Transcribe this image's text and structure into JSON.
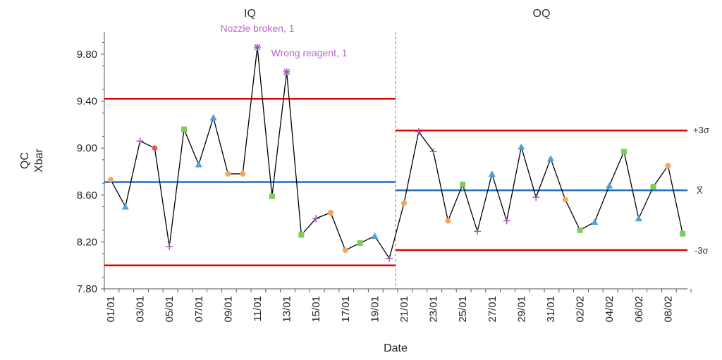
{
  "chart_data": {
    "type": "line",
    "chart_kind": "control chart (X-bar) with phases",
    "ylabel_lines": [
      "QC",
      "Xbar"
    ],
    "xlabel": "Date",
    "ylim": [
      7.8,
      10.0
    ],
    "yticks": [
      "7.80",
      "8.20",
      "8.60",
      "9.00",
      "9.40",
      "9.80"
    ],
    "ytick_values": [
      7.8,
      8.2,
      8.6,
      9.0,
      9.4,
      9.8
    ],
    "grid": false,
    "legend": "none",
    "x_tick_labels": [
      "01/01",
      "03/01",
      "05/01",
      "07/01",
      "09/01",
      "11/01",
      "13/01",
      "15/01",
      "17/01",
      "19/01",
      "21/01",
      "23/01",
      "25/01",
      "27/01",
      "29/01",
      "31/01",
      "02/02",
      "04/02",
      "06/02",
      "08/02"
    ],
    "phases": [
      {
        "name": "IQ",
        "center": 8.71,
        "ucl": 9.42,
        "lcl": 8.0,
        "points": [
          {
            "x": "01/01",
            "y": 8.73,
            "marker": "circle",
            "color": "#f4a460"
          },
          {
            "x": "02/01",
            "y": 8.5,
            "marker": "triangle",
            "color": "#4aa3d8"
          },
          {
            "x": "03/01",
            "y": 9.06,
            "marker": "plus",
            "color": "#9b59b6"
          },
          {
            "x": "04/01",
            "y": 9.0,
            "marker": "circle",
            "color": "#e05a5a"
          },
          {
            "x": "05/01",
            "y": 8.16,
            "marker": "plus",
            "color": "#9b59b6"
          },
          {
            "x": "06/01",
            "y": 9.16,
            "marker": "square",
            "color": "#7ccd5a"
          },
          {
            "x": "07/01",
            "y": 8.86,
            "marker": "triangle",
            "color": "#4aa3d8"
          },
          {
            "x": "08/01",
            "y": 9.26,
            "marker": "triangle",
            "color": "#4aa3d8"
          },
          {
            "x": "09/01",
            "y": 8.78,
            "marker": "circle",
            "color": "#f4a460"
          },
          {
            "x": "10/01",
            "y": 8.78,
            "marker": "circle",
            "color": "#f4a460"
          },
          {
            "x": "11/01",
            "y": 9.86,
            "marker": "star",
            "color": "#9b59b6"
          },
          {
            "x": "12/01",
            "y": 8.59,
            "marker": "square",
            "color": "#7ccd5a"
          },
          {
            "x": "13/01",
            "y": 9.65,
            "marker": "star",
            "color": "#9b59b6"
          },
          {
            "x": "14/01",
            "y": 8.26,
            "marker": "square",
            "color": "#7ccd5a"
          },
          {
            "x": "15/01",
            "y": 8.4,
            "marker": "plus",
            "color": "#9b59b6"
          },
          {
            "x": "16/01",
            "y": 8.45,
            "marker": "circle",
            "color": "#f4a460"
          },
          {
            "x": "17/01",
            "y": 8.13,
            "marker": "circle",
            "color": "#f4a460"
          },
          {
            "x": "18/01",
            "y": 8.19,
            "marker": "square",
            "color": "#7ccd5a"
          },
          {
            "x": "19/01",
            "y": 8.25,
            "marker": "triangle",
            "color": "#4aa3d8"
          },
          {
            "x": "20/01",
            "y": 8.06,
            "marker": "plus",
            "color": "#9b59b6"
          }
        ]
      },
      {
        "name": "OQ",
        "center": 8.64,
        "ucl": 9.15,
        "lcl": 8.13,
        "points": [
          {
            "x": "21/01",
            "y": 8.53,
            "marker": "circle",
            "color": "#f4a460"
          },
          {
            "x": "22/01",
            "y": 9.14,
            "marker": "plus",
            "color": "#9b59b6"
          },
          {
            "x": "23/01",
            "y": 8.97,
            "marker": "plus",
            "color": "#9b59b6"
          },
          {
            "x": "24/01",
            "y": 8.38,
            "marker": "circle",
            "color": "#f4a460"
          },
          {
            "x": "25/01",
            "y": 8.69,
            "marker": "square",
            "color": "#7ccd5a"
          },
          {
            "x": "26/01",
            "y": 8.29,
            "marker": "plus",
            "color": "#9b59b6"
          },
          {
            "x": "27/01",
            "y": 8.78,
            "marker": "triangle",
            "color": "#4aa3d8"
          },
          {
            "x": "28/01",
            "y": 8.38,
            "marker": "plus",
            "color": "#9b59b6"
          },
          {
            "x": "29/01",
            "y": 9.01,
            "marker": "triangle",
            "color": "#4aa3d8"
          },
          {
            "x": "30/01",
            "y": 8.58,
            "marker": "plus",
            "color": "#9b59b6"
          },
          {
            "x": "31/01",
            "y": 8.91,
            "marker": "triangle",
            "color": "#4aa3d8"
          },
          {
            "x": "01/02",
            "y": 8.56,
            "marker": "circle",
            "color": "#f4a460"
          },
          {
            "x": "02/02",
            "y": 8.3,
            "marker": "square",
            "color": "#7ccd5a"
          },
          {
            "x": "03/02",
            "y": 8.37,
            "marker": "triangle",
            "color": "#4aa3d8"
          },
          {
            "x": "04/02",
            "y": 8.68,
            "marker": "triangle",
            "color": "#4aa3d8"
          },
          {
            "x": "05/02",
            "y": 8.97,
            "marker": "square",
            "color": "#7ccd5a"
          },
          {
            "x": "06/02",
            "y": 8.4,
            "marker": "triangle",
            "color": "#4aa3d8"
          },
          {
            "x": "07/02",
            "y": 8.67,
            "marker": "square",
            "color": "#7ccd5a"
          },
          {
            "x": "08/02",
            "y": 8.85,
            "marker": "circle",
            "color": "#f4a460"
          },
          {
            "x": "09/02",
            "y": 8.27,
            "marker": "square",
            "color": "#7ccd5a"
          }
        ]
      }
    ],
    "control_line_labels": {
      "ucl": "+3σ",
      "center": "X̅",
      "lcl": "-3σ"
    },
    "annotations": [
      {
        "text": "Nozzle broken, 1",
        "x": "11/01"
      },
      {
        "text": "Wrong reagent, 1",
        "x": "13/01"
      }
    ],
    "colors": {
      "series_line": "#000000",
      "control_limit": "#e00000",
      "center_line": "#1f6fbf",
      "annotation": "#b36ac7",
      "phase_divider": "#808080",
      "axis": "#555555"
    }
  }
}
